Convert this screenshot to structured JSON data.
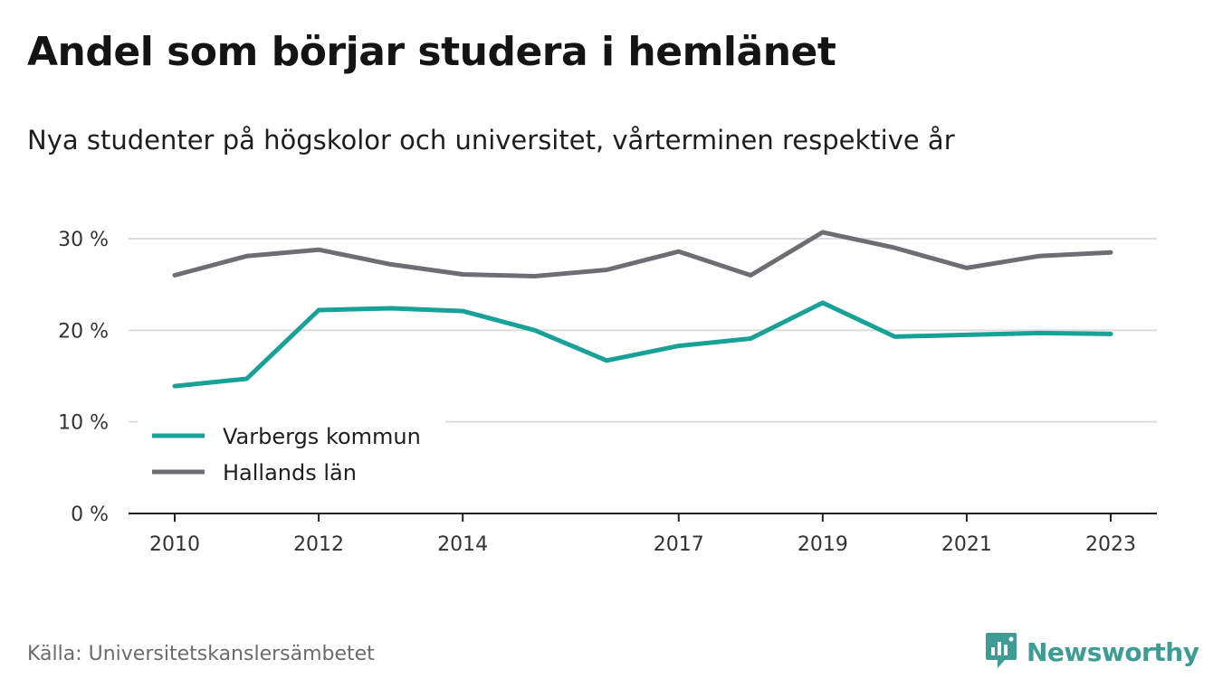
{
  "header": {
    "title": "Andel som börjar studera i hemlänet",
    "subtitle": "Nya studenter på högskolor och universitet, vårterminen respektive år"
  },
  "footer": {
    "source": "Källa: Universitetskanslersämbetet",
    "brand": "Newsworthy"
  },
  "colors": {
    "varberg": "#17a197",
    "halland": "#6e6d73",
    "grid": "#dcdcdc",
    "axis": "#222222",
    "brand": "#3f9c95"
  },
  "icons": {
    "brand_logo": "newsworthy-logo-icon"
  },
  "chart_data": {
    "type": "line",
    "title": "Andel som börjar studera i hemlänet",
    "xlabel": "",
    "ylabel": "",
    "x": [
      2010,
      2011,
      2012,
      2013,
      2014,
      2015,
      2016,
      2017,
      2018,
      2019,
      2020,
      2021,
      2022,
      2023
    ],
    "x_ticks": [
      2010,
      2012,
      2014,
      2017,
      2019,
      2021,
      2023
    ],
    "y_ticks": [
      0,
      10,
      20,
      30
    ],
    "y_tick_labels": [
      "0 %",
      "10 %",
      "20 %",
      "30 %"
    ],
    "ylim": [
      0,
      30
    ],
    "grid": true,
    "legend_position": "bottom-left",
    "series": [
      {
        "name": "Varbergs kommun",
        "color": "#17a197",
        "values": [
          13.9,
          14.7,
          22.2,
          22.4,
          22.1,
          20.0,
          16.7,
          18.3,
          19.1,
          23.0,
          19.3,
          19.5,
          19.7,
          19.6
        ]
      },
      {
        "name": "Hallands län",
        "color": "#6e6d73",
        "values": [
          26.0,
          28.1,
          28.8,
          27.2,
          26.1,
          25.9,
          26.6,
          28.6,
          26.0,
          30.7,
          29.0,
          26.8,
          28.1,
          28.5
        ]
      }
    ]
  }
}
